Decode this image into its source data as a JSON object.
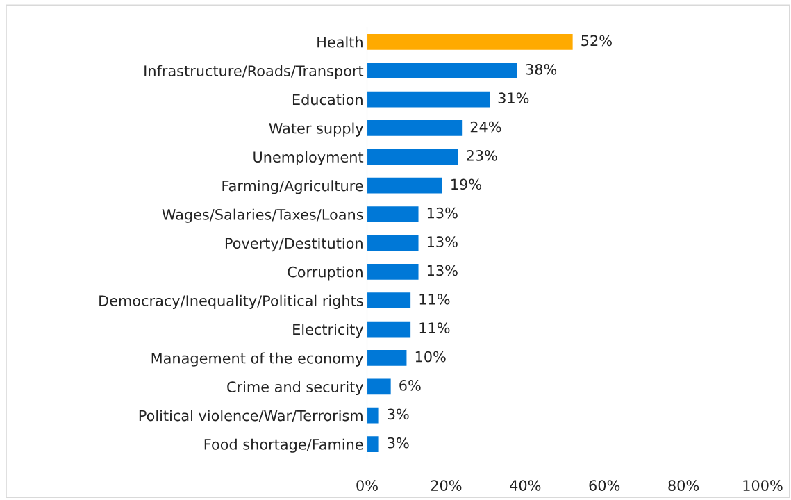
{
  "chart_data": {
    "type": "bar",
    "orientation": "horizontal",
    "categories": [
      "Health",
      "Infrastructure/Roads/Transport",
      "Education",
      "Water supply",
      "Unemployment",
      "Farming/Agriculture",
      "Wages/Salaries/Taxes/Loans",
      "Poverty/Destitution",
      "Corruption",
      "Democracy/Inequality/Political rights",
      "Electricity",
      "Management of the economy",
      "Crime and security",
      "Political violence/War/Terrorism",
      "Food shortage/Famine"
    ],
    "values": [
      52,
      38,
      31,
      24,
      23,
      19,
      13,
      13,
      13,
      11,
      11,
      10,
      6,
      3,
      3
    ],
    "colors": [
      "#ffaa00",
      "#0078d7",
      "#0078d7",
      "#0078d7",
      "#0078d7",
      "#0078d7",
      "#0078d7",
      "#0078d7",
      "#0078d7",
      "#0078d7",
      "#0078d7",
      "#0078d7",
      "#0078d7",
      "#0078d7",
      "#0078d7"
    ],
    "value_labels": [
      "52%",
      "38%",
      "31%",
      "24%",
      "23%",
      "19%",
      "13%",
      "13%",
      "13%",
      "11%",
      "11%",
      "10%",
      "6%",
      "3%",
      "3%"
    ],
    "xlim": [
      0,
      100
    ],
    "xticks": [
      {
        "value": 0,
        "label": "0%"
      },
      {
        "value": 20,
        "label": "20%"
      },
      {
        "value": 40,
        "label": "40%"
      },
      {
        "value": 60,
        "label": "60%"
      },
      {
        "value": 80,
        "label": "80%"
      },
      {
        "value": 100,
        "label": "100%"
      }
    ],
    "grid": false,
    "legend": false
  }
}
